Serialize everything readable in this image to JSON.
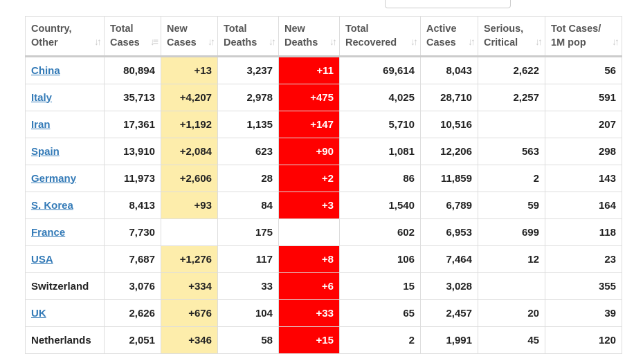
{
  "colors": {
    "new_cases_bg": "#fdedab",
    "new_deaths_bg": "#ff0000",
    "link": "#337ab7"
  },
  "headers": [
    "Country,\nOther",
    "Total\nCases",
    "New\nCases",
    "Total\nDeaths",
    "New\nDeaths",
    "Total\nRecovered",
    "Active\nCases",
    "Serious,\nCritical",
    "Tot Cases/\n1M pop"
  ],
  "rows": [
    {
      "country": "China",
      "link": true,
      "cells": [
        "80,894",
        "+13",
        "3,237",
        "+11",
        "69,614",
        "8,043",
        "2,622",
        "56"
      ]
    },
    {
      "country": "Italy",
      "link": true,
      "cells": [
        "35,713",
        "+4,207",
        "2,978",
        "+475",
        "4,025",
        "28,710",
        "2,257",
        "591"
      ]
    },
    {
      "country": "Iran",
      "link": true,
      "cells": [
        "17,361",
        "+1,192",
        "1,135",
        "+147",
        "5,710",
        "10,516",
        "",
        "207"
      ]
    },
    {
      "country": "Spain",
      "link": true,
      "cells": [
        "13,910",
        "+2,084",
        "623",
        "+90",
        "1,081",
        "12,206",
        "563",
        "298"
      ]
    },
    {
      "country": "Germany",
      "link": true,
      "cells": [
        "11,973",
        "+2,606",
        "28",
        "+2",
        "86",
        "11,859",
        "2",
        "143"
      ]
    },
    {
      "country": "S. Korea",
      "link": true,
      "cells": [
        "8,413",
        "+93",
        "84",
        "+3",
        "1,540",
        "6,789",
        "59",
        "164"
      ]
    },
    {
      "country": "France",
      "link": true,
      "cells": [
        "7,730",
        "",
        "175",
        "",
        "602",
        "6,953",
        "699",
        "118"
      ]
    },
    {
      "country": "USA",
      "link": true,
      "cells": [
        "7,687",
        "+1,276",
        "117",
        "+8",
        "106",
        "7,464",
        "12",
        "23"
      ]
    },
    {
      "country": "Switzerland",
      "link": false,
      "cells": [
        "3,076",
        "+334",
        "33",
        "+6",
        "15",
        "3,028",
        "",
        "355"
      ]
    },
    {
      "country": "UK",
      "link": true,
      "cells": [
        "2,626",
        "+676",
        "104",
        "+33",
        "65",
        "2,457",
        "20",
        "39"
      ]
    },
    {
      "country": "Netherlands",
      "link": false,
      "cells": [
        "2,051",
        "+346",
        "58",
        "+15",
        "2",
        "1,991",
        "45",
        "120"
      ]
    }
  ]
}
